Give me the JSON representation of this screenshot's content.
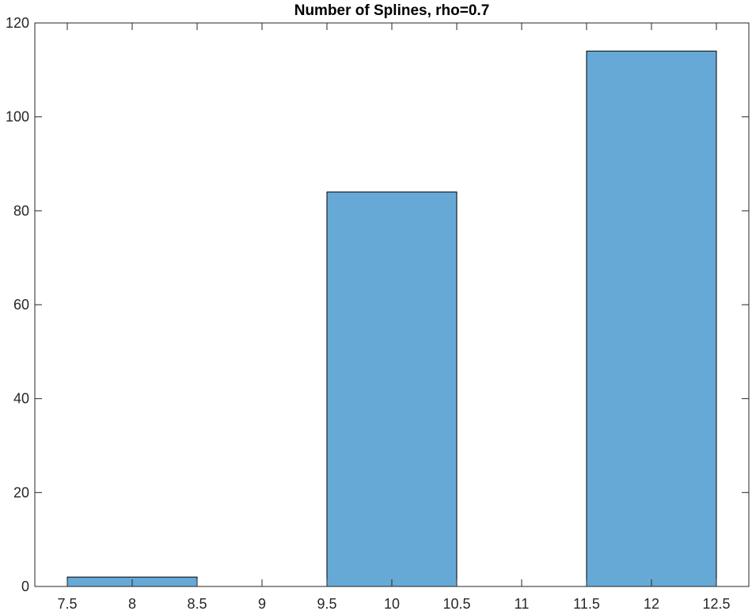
{
  "chart_data": {
    "type": "bar",
    "title": "Number of Splines, rho=0.7",
    "xlabel": "",
    "ylabel": "",
    "xlim": [
      7.25,
      12.75
    ],
    "ylim": [
      0,
      120
    ],
    "bin_width": 1,
    "bins": [
      {
        "center": 8,
        "value": 2
      },
      {
        "center": 9,
        "value": 0
      },
      {
        "center": 10,
        "value": 84
      },
      {
        "center": 11,
        "value": 0
      },
      {
        "center": 12,
        "value": 114
      }
    ],
    "xticks": [
      "7.5",
      "8",
      "8.5",
      "9",
      "9.5",
      "10",
      "10.5",
      "11",
      "11.5",
      "12",
      "12.5"
    ],
    "yticks": [
      "0",
      "20",
      "40",
      "60",
      "80",
      "100",
      "120"
    ],
    "bar_color": "#67a9d6",
    "edge_color": "#000000",
    "grid": false
  }
}
